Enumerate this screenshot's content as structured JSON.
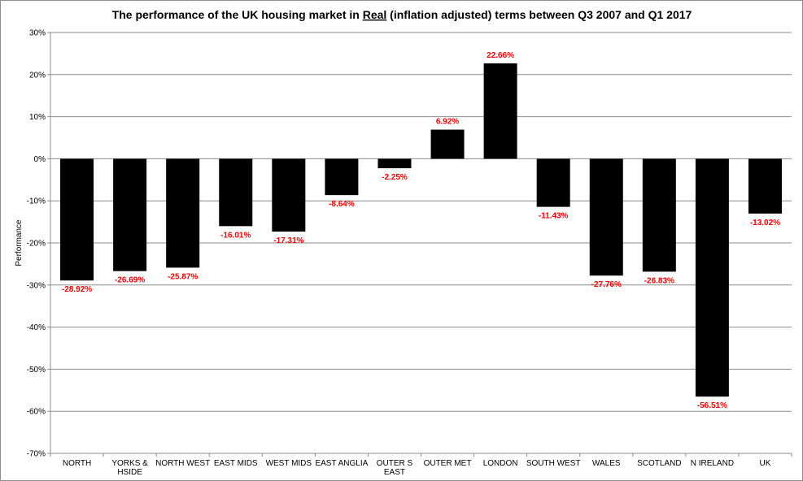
{
  "chart_data": {
    "type": "bar",
    "title_parts": [
      "The performance of the UK housing market in ",
      "Real",
      " (inflation adjusted) terms between Q3 2007 and Q1 2017"
    ],
    "ylabel": "Performance",
    "xlabel": "",
    "ylim": [
      -70,
      30
    ],
    "yticks": [
      30,
      20,
      10,
      0,
      -10,
      -20,
      -30,
      -40,
      -50,
      -60,
      -70
    ],
    "ytick_suffix": "%",
    "grid": true,
    "legend": "none",
    "categories": [
      [
        "NORTH"
      ],
      [
        "YORKS &",
        "HSIDE"
      ],
      [
        "NORTH WEST"
      ],
      [
        "EAST MIDS"
      ],
      [
        "WEST MIDS"
      ],
      [
        "EAST ANGLIA"
      ],
      [
        "OUTER S",
        "EAST"
      ],
      [
        "OUTER MET"
      ],
      [
        "LONDON"
      ],
      [
        "SOUTH WEST"
      ],
      [
        "WALES"
      ],
      [
        "SCOTLAND"
      ],
      [
        "N IRELAND"
      ],
      [
        "UK"
      ]
    ],
    "values": [
      -28.92,
      -26.69,
      -25.87,
      -16.01,
      -17.31,
      -8.64,
      -2.25,
      6.92,
      22.66,
      -11.43,
      -27.76,
      -26.83,
      -56.51,
      -13.02
    ],
    "data_labels": [
      "-28.92%",
      "-26.69%",
      "-25.87%",
      "-16.01%",
      "-17.31%",
      "-8.64%",
      "-2.25%",
      "6.92%",
      "22.66%",
      "-11.43%",
      "-27.76%",
      "-26.83%",
      "-56.51%",
      "-13.02%"
    ],
    "bar_color": "#000000",
    "label_color": "#ff0000",
    "grid_color": "#8c8c8c"
  }
}
